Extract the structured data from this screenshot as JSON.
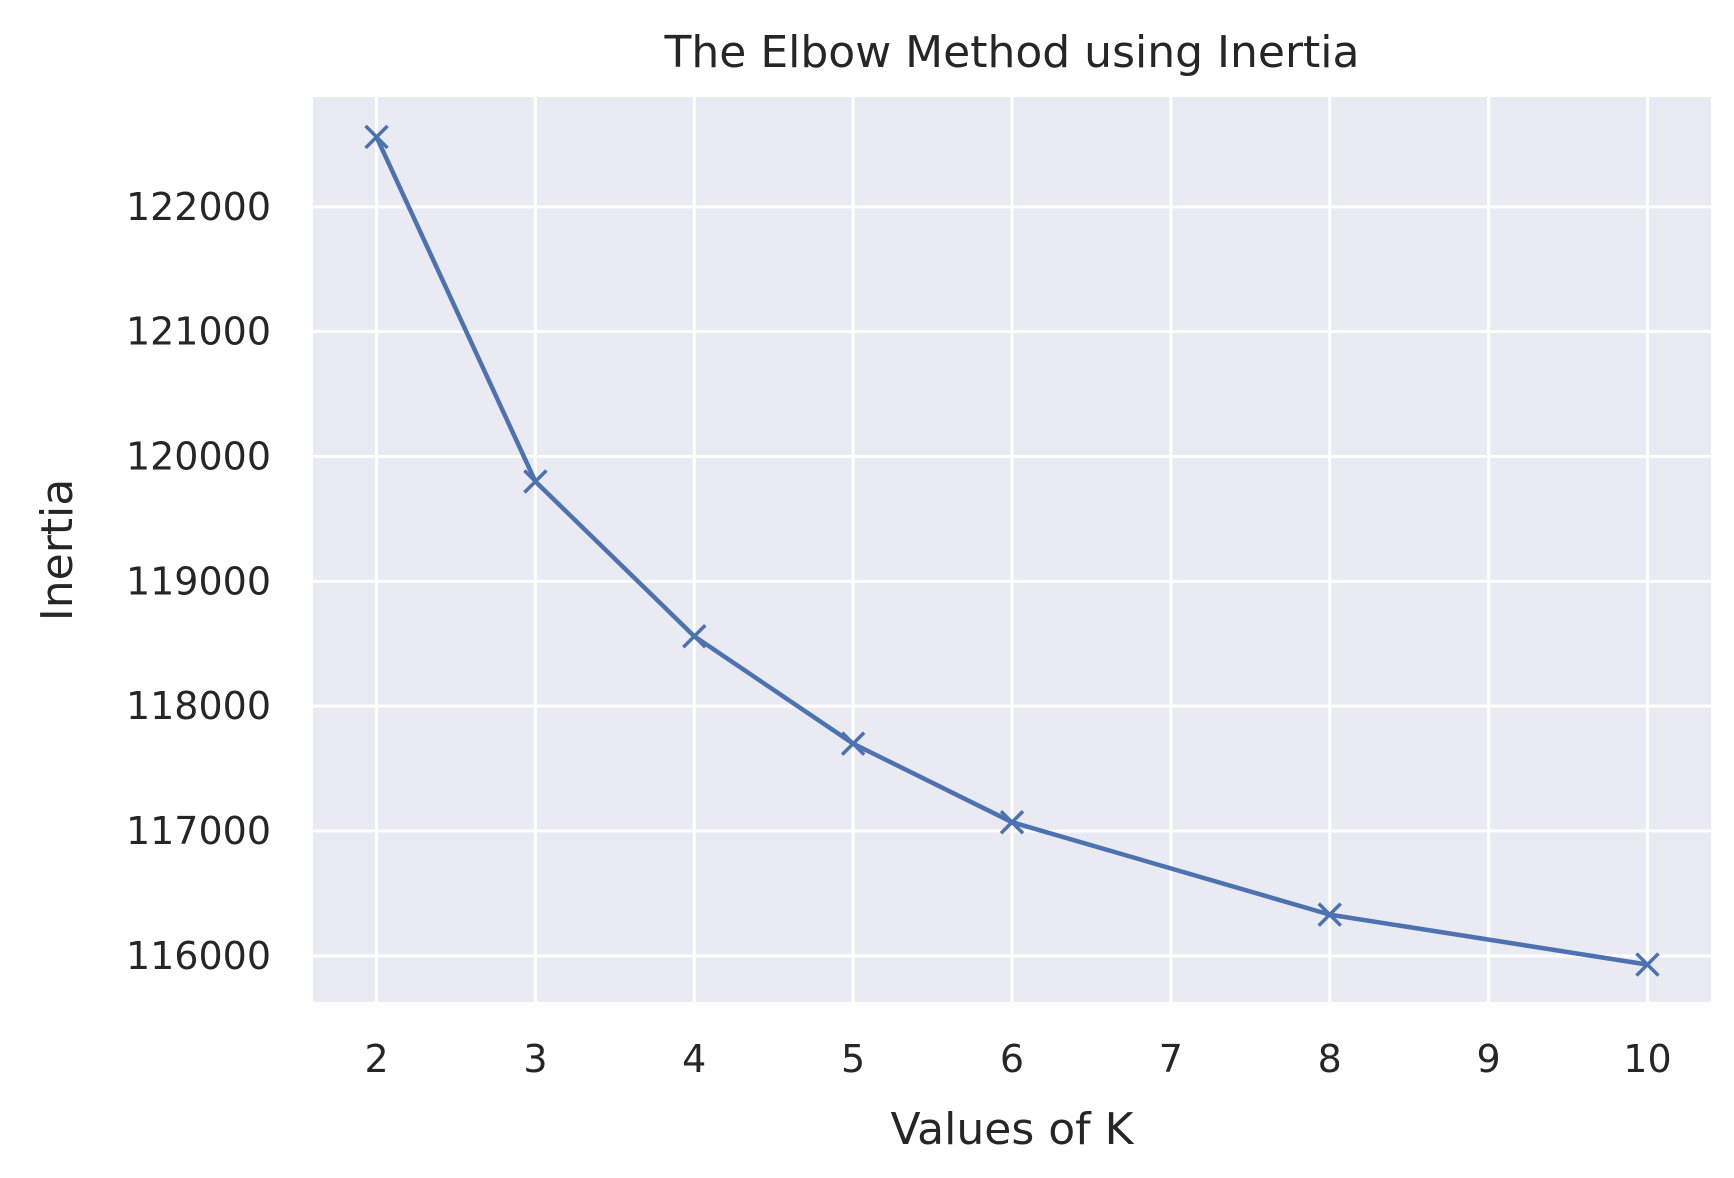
{
  "chart_data": {
    "type": "line",
    "title": "The Elbow Method using Inertia",
    "xlabel": "Values of K",
    "ylabel": "Inertia",
    "x": [
      2,
      3,
      4,
      5,
      6,
      8,
      10
    ],
    "series": [
      {
        "values": [
          122560,
          119800,
          118560,
          117700,
          117070,
          116330,
          115930
        ],
        "color": "#4c72b0",
        "marker": "x"
      }
    ],
    "xticks": [
      2,
      3,
      4,
      5,
      6,
      7,
      8,
      9,
      10
    ],
    "yticks": [
      116000,
      117000,
      118000,
      119000,
      120000,
      121000,
      122000
    ],
    "xlim": [
      1.6,
      10.4
    ],
    "ylim": [
      115630,
      122880
    ],
    "grid": true,
    "background_color": "#eaeaf2",
    "grid_color": "#ffffff",
    "legend": "none"
  }
}
